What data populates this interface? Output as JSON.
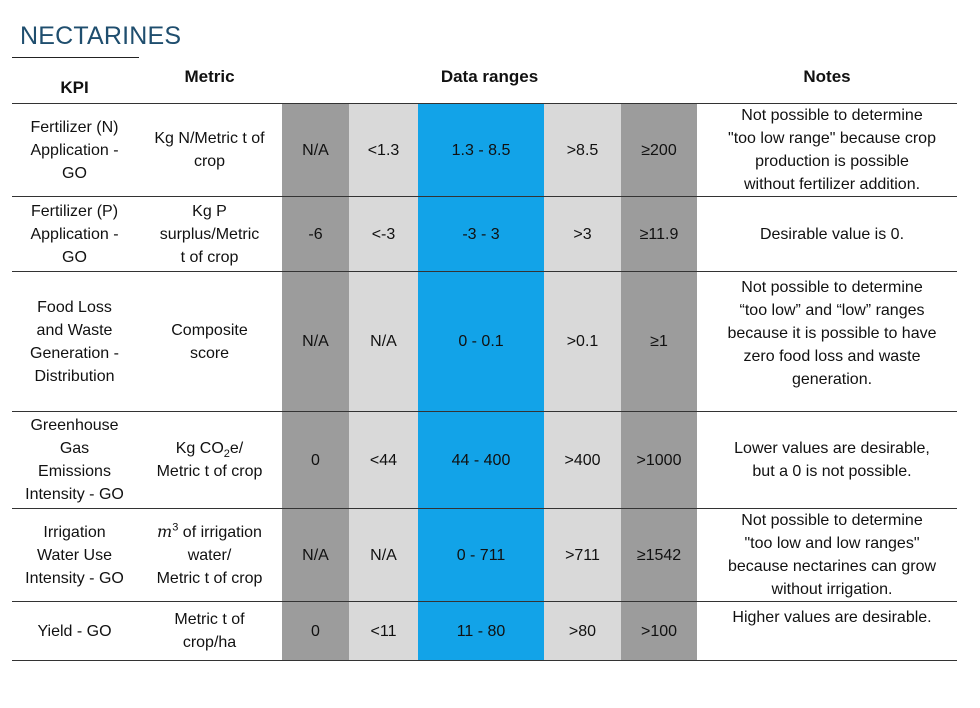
{
  "title": "NECTARINES",
  "headers": {
    "kpi": "KPI",
    "metric": "Metric",
    "data_ranges": "Data ranges",
    "notes": "Notes"
  },
  "rows": [
    {
      "kpi": [
        "Fertilizer (N)",
        "Application -",
        "GO"
      ],
      "metric": [
        "Kg N/Metric t of",
        "crop"
      ],
      "ranges": [
        "N/A",
        "<1.3",
        "1.3 - 8.5",
        ">8.5",
        "≥200"
      ],
      "notes": [
        "Not possible to determine",
        "\"too low range\" because crop",
        "production is possible",
        "without fertilizer addition."
      ]
    },
    {
      "kpi": [
        "Fertilizer (P)",
        "Application -",
        "GO"
      ],
      "metric": [
        "Kg P",
        "surplus/Metric",
        "t of crop"
      ],
      "ranges": [
        "-6",
        "<-3",
        "-3 - 3",
        ">3",
        "≥11.9"
      ],
      "notes": [
        "Desirable value is 0."
      ]
    },
    {
      "kpi": [
        "Food Loss",
        "and Waste",
        "Generation -",
        "Distribution"
      ],
      "metric": [
        "Composite",
        "score"
      ],
      "ranges": [
        "N/A",
        "N/A",
        "0 - 0.1",
        ">0.1",
        "≥1"
      ],
      "notes": [
        "Not possible to determine",
        "“too low” and “low” ranges",
        "because it is possible to have",
        "zero food loss and waste",
        "generation."
      ]
    },
    {
      "kpi": [
        "Greenhouse",
        "Gas",
        "Emissions",
        "Intensity - GO"
      ],
      "metric_prefix": "Kg CO",
      "metric_sub": "2",
      "metric_suffix": "e/",
      "metric_line2": "Metric t of crop",
      "ranges": [
        "0",
        "<44",
        "44 - 400",
        ">400",
        ">1000"
      ],
      "notes": [
        "Lower values are desirable,",
        "but a 0 is not possible."
      ]
    },
    {
      "kpi": [
        "Irrigation",
        "Water Use",
        "Intensity - GO"
      ],
      "metric_math": "m",
      "metric_sup": "3",
      "metric_rest": " of irrigation",
      "metric_line2": "water/",
      "metric_line3": "Metric t of crop",
      "ranges": [
        "N/A",
        "N/A",
        "0 - 711",
        ">711",
        "≥1542"
      ],
      "notes": [
        "Not possible to determine",
        "\"too low and low ranges\"",
        "because nectarines can grow",
        "without irrigation."
      ]
    },
    {
      "kpi": [
        "Yield - GO"
      ],
      "metric": [
        "Metric t of",
        "crop/ha"
      ],
      "ranges": [
        "0",
        "<11",
        "11 - 80",
        ">80",
        ">100"
      ],
      "notes": [
        "Higher values are desirable."
      ]
    }
  ],
  "colors": {
    "dark_gray": "#9c9c9c",
    "light_gray": "#d9d9d9",
    "blue": "#12a3e8",
    "title": "#1f4e6e"
  }
}
